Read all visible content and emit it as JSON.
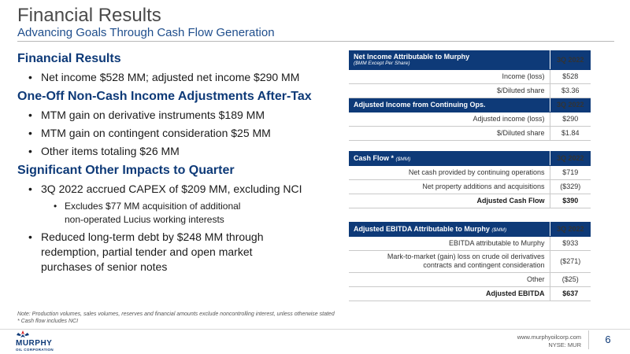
{
  "slide": {
    "title": "Financial Results",
    "subtitle": "Advancing Goals Through Cash Flow Generation"
  },
  "content": {
    "sections": [
      {
        "heading": "Financial Results",
        "bullets": [
          "Net income $528 MM; adjusted net income $290 MM"
        ]
      },
      {
        "heading": "One-Off Non-Cash Income Adjustments After-Tax",
        "bullets": [
          "MTM gain on derivative instruments $189 MM",
          "MTM gain on contingent consideration $25 MM",
          "Other items totaling $26 MM"
        ]
      },
      {
        "heading": "Significant Other Impacts to Quarter",
        "bullet_capex": "3Q 2022 accrued CAPEX of $209 MM, excluding NCI",
        "sub_bullet_line1": "Excludes $77 MM acquisition of additional",
        "sub_bullet_line2": "non-operated Lucius working interests",
        "bullet_debt_line1": "Reduced long-term debt by $248 MM through",
        "bullet_debt_line2": "redemption, partial tender and open market",
        "bullet_debt_line3": "purchases of senior notes"
      }
    ]
  },
  "tables": {
    "net_income": {
      "header": "Net Income Attributable to Murphy",
      "header_caption": "($MM Except Per Share)",
      "period": "3Q 2022",
      "rows": [
        {
          "label": "Income (loss)",
          "value": "$528"
        },
        {
          "label": "$/Diluted share",
          "value": "$3.36"
        }
      ],
      "sub_header": "Adjusted Income from Continuing Ops.",
      "sub_period": "3Q 2022",
      "sub_rows": [
        {
          "label": "Adjusted income (loss)",
          "value": "$290"
        },
        {
          "label": "$/Diluted share",
          "value": "$1.84"
        }
      ]
    },
    "cash_flow": {
      "header": "Cash Flow *",
      "header_caption": "($MM)",
      "period": "3Q 2022",
      "rows": [
        {
          "label": "Net cash provided by continuing operations",
          "value": "$719"
        },
        {
          "label": "Net property additions and acquisitions",
          "value": "($329)"
        }
      ],
      "total": {
        "label": "Adjusted Cash Flow",
        "value": "$390"
      }
    },
    "ebitda": {
      "header": "Adjusted EBITDA Attributable to Murphy",
      "header_caption": "($MM)",
      "period": "3Q 2022",
      "row1": {
        "label": "EBITDA attributable to Murphy",
        "value": "$933"
      },
      "row2": {
        "label_line1": "Mark-to-market (gain) loss on crude oil derivatives",
        "label_line2": "contracts and contingent consideration",
        "value": "($271)"
      },
      "row3": {
        "label": "Other",
        "value": "($25)"
      },
      "total": {
        "label": "Adjusted EBITDA",
        "value": "$637"
      }
    }
  },
  "notes": {
    "line1": "Note: Production volumes, sales volumes, reserves and financial amounts exclude noncontrolling interest, unless otherwise stated",
    "line2": "* Cash flow includes NCI"
  },
  "footer": {
    "logo_name": "MURPHY",
    "logo_sub": "OIL CORPORATION",
    "logo_icon": "murphy-logo-icon",
    "website": "www.murphyoilcorp.com",
    "ticker": "NYSE: MUR",
    "page_number": "6",
    "colors": {
      "brand_blue": "#0e3a78",
      "brand_red": "#d2232a"
    }
  }
}
